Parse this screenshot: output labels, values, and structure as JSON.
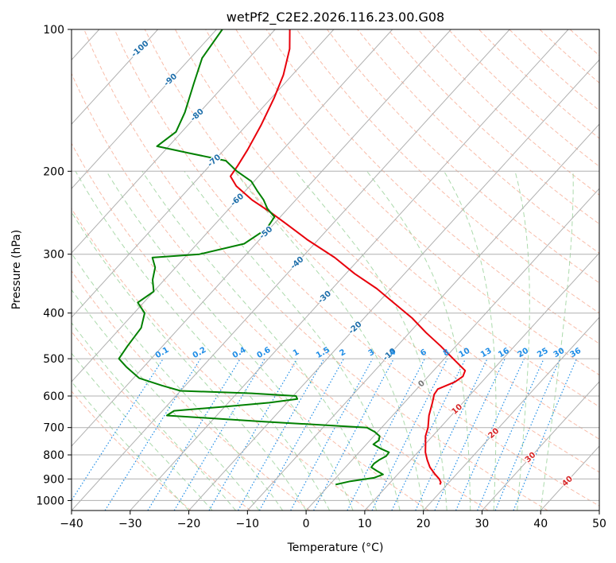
{
  "chart_data": {
    "type": "skewt",
    "title": "wetPf2_C2E2.2026.116.23.00.G08",
    "xlabel": "Temperature (°C)",
    "ylabel": "Pressure (hPa)",
    "xlim": [
      -40,
      50
    ],
    "ylim": [
      1050,
      100
    ],
    "x_ticks": [
      "−40",
      "−30",
      "−20",
      "−10",
      "0",
      "10",
      "20",
      "30",
      "40",
      "50"
    ],
    "x_tick_values": [
      -40,
      -30,
      -20,
      -10,
      0,
      10,
      20,
      30,
      40,
      50
    ],
    "y_ticks": [
      "100",
      "200",
      "300",
      "400",
      "500",
      "600",
      "700",
      "800",
      "900",
      "1000"
    ],
    "y_tick_values": [
      100,
      200,
      300,
      400,
      500,
      600,
      700,
      800,
      900,
      1000
    ],
    "colors": {
      "temperature": "#e8000b",
      "dewpoint": "#008000",
      "isotherm": "#b0b0b0",
      "dry_adiabat": "#f5a58c",
      "moist_adiabat": "#9dd39d",
      "mixing_ratio": "#1f8de6",
      "isotherm_label": "#1f6faa",
      "warm_label": "#d62728"
    },
    "isotherm_labels": [
      "-100",
      "-90",
      "-80",
      "-70",
      "-60",
      "-50",
      "-40",
      "-30",
      "-20",
      "-10",
      "0",
      "10",
      "20",
      "30",
      "40"
    ],
    "isotherm_label_values": [
      -100,
      -90,
      -80,
      -70,
      -60,
      -50,
      -40,
      -30,
      -20,
      -10,
      0,
      10,
      20,
      30,
      40
    ],
    "mixing_ratio_labels": [
      "0.1",
      "0.2",
      "0.4",
      "0.6",
      "1",
      "1.5",
      "2",
      "3",
      "4",
      "6",
      "8",
      "10",
      "13",
      "16",
      "20",
      "25",
      "30",
      "36"
    ],
    "mixing_ratio_values": [
      0.1,
      0.2,
      0.4,
      0.6,
      1,
      1.5,
      2,
      3,
      4,
      6,
      8,
      10,
      13,
      16,
      20,
      25,
      30,
      36
    ],
    "series": [
      {
        "name": "Temperature",
        "pressure": [
          925,
          915,
          900,
          880,
          850,
          820,
          790,
          760,
          730,
          700,
          660,
          620,
          595,
          580,
          560,
          545,
          530,
          500,
          470,
          440,
          410,
          380,
          355,
          330,
          305,
          280,
          260,
          245,
          230,
          215,
          205,
          195,
          180,
          160,
          140,
          125,
          110,
          100
        ],
        "temp": [
          18.8,
          18.6,
          17.8,
          16.4,
          14.4,
          12.8,
          11.3,
          10.1,
          8.8,
          7.9,
          6.2,
          4.8,
          3.8,
          3.6,
          5.4,
          5.9,
          5.4,
          1.5,
          -2.6,
          -7.2,
          -11.8,
          -17.4,
          -22.4,
          -28.5,
          -34.4,
          -41.7,
          -47.5,
          -52.2,
          -57.5,
          -62.3,
          -64.8,
          -65.2,
          -66.0,
          -67.5,
          -69.5,
          -71.5,
          -74.5,
          -77.5
        ]
      },
      {
        "name": "Dewpoint",
        "pressure": [
          925,
          910,
          895,
          880,
          865,
          850,
          835,
          820,
          805,
          790,
          775,
          760,
          745,
          730,
          715,
          700,
          680,
          660,
          645,
          632,
          620,
          609,
          600,
          592,
          585,
          570,
          550,
          520,
          500,
          470,
          430,
          400,
          380,
          360,
          340,
          320,
          305,
          300,
          285,
          265,
          250,
          240,
          230,
          220,
          210,
          200,
          190,
          183,
          177,
          165,
          150,
          130,
          115,
          100
        ],
        "temp": [
          1.0,
          3.0,
          6.5,
          7.5,
          5.9,
          4.4,
          4.3,
          4.6,
          5.2,
          5.1,
          3.0,
          1.2,
          1.5,
          1.0,
          -0.5,
          -2.5,
          -21.0,
          -38.5,
          -38.0,
          -30.0,
          -23.0,
          -18.8,
          -19.5,
          -27.5,
          -40.0,
          -44.0,
          -49.0,
          -53.0,
          -55.5,
          -56.0,
          -56.5,
          -58.2,
          -61.0,
          -60.0,
          -62.0,
          -63.5,
          -65.5,
          -58.0,
          -52.0,
          -50.5,
          -51.0,
          -53.5,
          -55.5,
          -58.0,
          -60.5,
          -64.5,
          -68.0,
          -75.5,
          -82.0,
          -81.0,
          -82.5,
          -85.5,
          -88.0,
          -89.0
        ]
      }
    ]
  }
}
